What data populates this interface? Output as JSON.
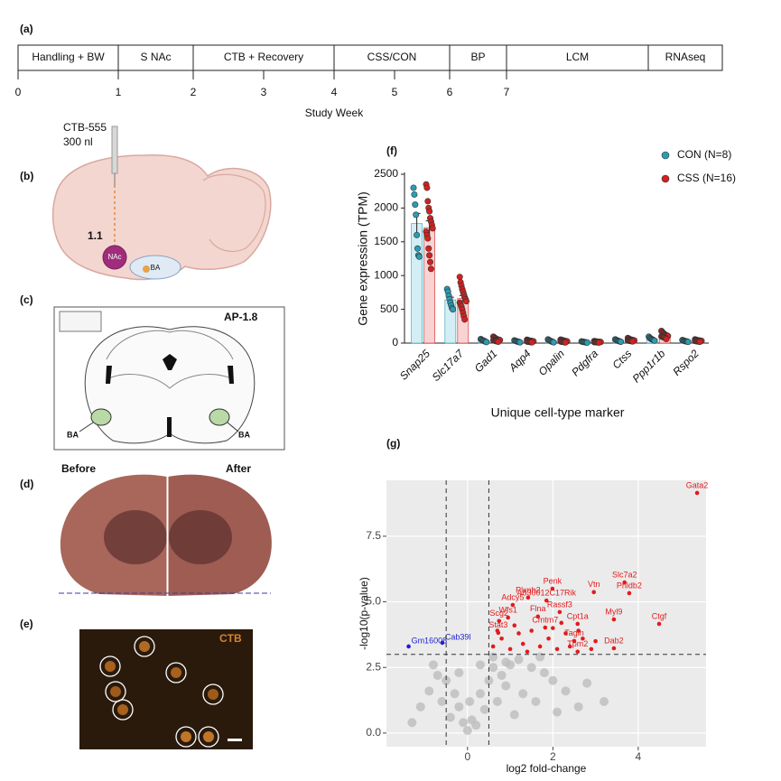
{
  "panels": {
    "labels": [
      "(a)",
      "(b)",
      "(c)",
      "(d)",
      "(e)",
      "(f)",
      "(g)"
    ],
    "b": {
      "syringe": "CTB-555",
      "volume": "300 nl",
      "depth": "1.1",
      "nac": "NAc",
      "ba": "BA"
    },
    "c": {
      "ap": "AP-1.8",
      "ba_left": "BA",
      "ba_right": "BA"
    },
    "d": {
      "before": "Before",
      "after": "After"
    },
    "e": {
      "stain": "CTB"
    }
  },
  "timeline": {
    "segments": [
      "Handling + BW",
      "S NAc",
      "CTB + Recovery",
      "CSS/CON",
      "BP",
      "LCM",
      "RNAseq"
    ],
    "ticks": [
      0,
      1,
      2,
      3,
      4,
      5,
      6,
      7
    ],
    "axis_label": "Study Week"
  },
  "chart_data": [
    {
      "type": "bar",
      "ylabel": "Gene expression (TPM)",
      "xlabel": "Unique cell-type marker",
      "categories": [
        "Snap25",
        "Slc17a7",
        "Gad1",
        "Aqp4",
        "Opalin",
        "Pdgfra",
        "Ctss",
        "Ppp1r1b",
        "Rspo2"
      ],
      "ylim": [
        0,
        2500
      ],
      "yticks": [
        0,
        500,
        1000,
        1500,
        2000,
        2500
      ],
      "legend": "top-right",
      "series": [
        {
          "name": "CON (N=8)",
          "color": "#2a9db5",
          "bar_color": "#d3eef4",
          "values": [
            1770,
            640,
            35,
            25,
            30,
            15,
            35,
            60,
            30
          ],
          "errors": [
            150,
            40,
            5,
            4,
            5,
            2,
            4,
            7,
            3
          ],
          "points": [
            [
              2300,
              2200,
              2050,
              1900,
              1600,
              1400,
              1300,
              1280
            ],
            [
              800,
              760,
              700,
              650,
              600,
              560,
              520,
              500
            ],
            [
              60,
              50,
              42,
              38,
              32,
              28,
              20,
              15
            ],
            [
              40,
              35,
              30,
              26,
              22,
              20,
              16,
              12
            ],
            [
              55,
              45,
              38,
              32,
              26,
              22,
              18,
              12
            ],
            [
              25,
              22,
              18,
              16,
              14,
              12,
              10,
              8
            ],
            [
              55,
              48,
              40,
              36,
              32,
              28,
              24,
              20
            ],
            [
              95,
              80,
              70,
              62,
              55,
              50,
              42,
              35
            ],
            [
              45,
              40,
              35,
              30,
              28,
              25,
              22,
              18
            ]
          ]
        },
        {
          "name": "CSS (N=16)",
          "color": "#d42020",
          "bar_color": "#f8d3d3",
          "values": [
            1710,
            660,
            50,
            30,
            30,
            18,
            45,
            110,
            35
          ],
          "errors": [
            100,
            45,
            6,
            3,
            3,
            2,
            4,
            8,
            3
          ],
          "points": [
            [
              2350,
              2300,
              2100,
              2000,
              1950,
              1850,
              1800,
              1750,
              1700,
              1650,
              1600,
              1550,
              1400,
              1300,
              1200,
              1100
            ],
            [
              980,
              900,
              850,
              800,
              760,
              720,
              680,
              650,
              620,
              600,
              570,
              540,
              500,
              450,
              400,
              350
            ],
            [
              95,
              85,
              75,
              68,
              60,
              55,
              50,
              48,
              45,
              42,
              38,
              35,
              30,
              28,
              25,
              20
            ],
            [
              50,
              45,
              40,
              36,
              34,
              32,
              30,
              28,
              26,
              24,
              22,
              20,
              18,
              16,
              14,
              12
            ],
            [
              52,
              48,
              44,
              40,
              36,
              33,
              30,
              28,
              26,
              24,
              22,
              20,
              18,
              15,
              12,
              10
            ],
            [
              30,
              28,
              25,
              22,
              20,
              19,
              18,
              17,
              16,
              15,
              14,
              13,
              12,
              11,
              10,
              8
            ],
            [
              75,
              68,
              60,
              55,
              50,
              48,
              45,
              42,
              40,
              38,
              36,
              34,
              32,
              30,
              28,
              25
            ],
            [
              180,
              165,
              150,
              140,
              130,
              122,
              115,
              110,
              105,
              100,
              95,
              90,
              85,
              78,
              70,
              60
            ],
            [
              55,
              50,
              46,
              42,
              40,
              38,
              36,
              34,
              33,
              32,
              30,
              28,
              26,
              24,
              22,
              20
            ]
          ]
        }
      ]
    },
    {
      "type": "scatter",
      "xlabel": "log2 fold-change",
      "ylabel": "-log10(p-value)",
      "xlim": [
        -1.9,
        5.59
      ],
      "ylim": [
        -0.52,
        9.63
      ],
      "xticks": [
        0,
        2,
        4
      ],
      "yticks": [
        {
          "value": 0,
          "label": "0.0"
        },
        2.5,
        {
          "value": 5,
          "label": "5.0"
        },
        7.5
      ],
      "grid": true,
      "thresholds": {
        "x": [
          -0.5,
          0.5
        ],
        "y": 3
      },
      "series": [
        {
          "color": "#bdbdbd",
          "x": [
            -0.2,
            0.1,
            0.3,
            0.5,
            0.6,
            0.8,
            1.0,
            1.2,
            1.5,
            1.8,
            2.0,
            2.3,
            2.6,
            -0.3,
            -0.5,
            -0.7,
            -0.9,
            -1.1,
            -0.4,
            0.0,
            0.2,
            0.4,
            0.7,
            0.9,
            1.3,
            1.6,
            2.1,
            -0.6,
            -0.2,
            0.6,
            0.9,
            1.1,
            -0.8,
            0.3,
            1.7,
            2.8,
            3.2,
            -1.3,
            0.05,
            -0.1
          ],
          "y": [
            1.0,
            0.5,
            1.5,
            2.0,
            2.5,
            2.2,
            2.6,
            2.8,
            2.5,
            2.3,
            2.0,
            1.6,
            1.0,
            1.5,
            2.0,
            2.2,
            1.6,
            1.0,
            0.6,
            0.1,
            0.3,
            0.9,
            1.2,
            1.8,
            1.5,
            1.2,
            0.8,
            1.2,
            2.3,
            2.9,
            2.7,
            0.7,
            2.6,
            2.6,
            2.9,
            1.9,
            1.2,
            0.4,
            1.2,
            0.4
          ]
        },
        {
          "color": "#e41a1c",
          "x": [
            5.38,
            3.68,
            3.79,
            2.96,
            1.99,
            1.42,
            1.85,
            1.06,
            2.16,
            1.65,
            0.74,
            0.95,
            3.43,
            4.49,
            1.82,
            2.58,
            0.72,
            2.5,
            2.58,
            3.43,
            0.6,
            0.8,
            1.0,
            1.2,
            1.3,
            1.5,
            1.7,
            1.9,
            2.1,
            2.3,
            2.4,
            2.7,
            2.9,
            1.1,
            2.2,
            0.7,
            1.4,
            2.0,
            3.0,
            2.6
          ],
          "y": [
            9.15,
            5.74,
            5.33,
            5.37,
            5.5,
            5.16,
            5.05,
            4.88,
            4.61,
            4.44,
            4.27,
            4.4,
            4.33,
            4.16,
            4.02,
            4.16,
            3.82,
            3.51,
            3.1,
            3.23,
            3.3,
            3.6,
            3.2,
            3.8,
            3.4,
            3.9,
            3.3,
            3.6,
            3.2,
            3.8,
            3.3,
            3.6,
            3.2,
            4.1,
            4.2,
            3.9,
            3.1,
            4.0,
            3.5,
            3.9
          ],
          "labels": [
            "Gata2",
            "Slc7a2",
            "Phldb2",
            "Vtn",
            "Penk",
            "Plxnb2",
            "A830012C17Rik",
            "Adcy5",
            "Rassf3",
            "Flna",
            "Scg2",
            "Wfs1",
            "Myl9",
            "Ctgf",
            "Cmtm7",
            "Cpt1a",
            "Stat3",
            "Tagln",
            "Tpm2",
            "Dab2",
            null,
            null,
            null,
            null,
            null,
            null,
            null,
            null,
            null,
            null,
            null,
            null,
            null,
            null,
            null,
            null,
            null,
            null,
            null,
            null
          ]
        },
        {
          "color": "#1f1fd1",
          "x": [
            -1.38,
            -0.59
          ],
          "y": [
            3.3,
            3.44
          ],
          "labels": [
            "Gm16008",
            "Cab39l"
          ]
        }
      ]
    }
  ]
}
